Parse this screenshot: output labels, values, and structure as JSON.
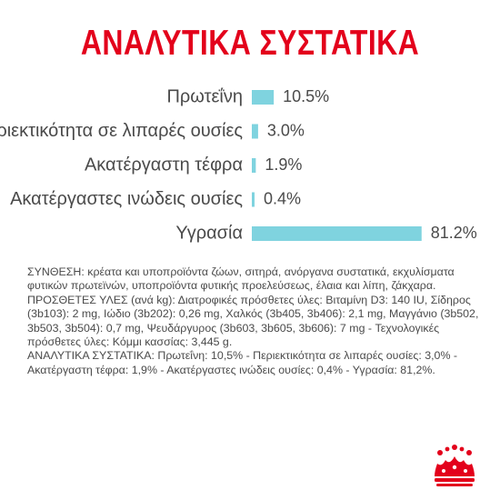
{
  "title": "ΑΝΑΛΥΤΙΚΑ ΣΥΣΤΑΤΙΚΑ",
  "chart_data": {
    "type": "bar",
    "orientation": "horizontal",
    "categories": [
      "Πρωτεΐνη",
      "Περιεκτικότητα σε λιπαρές ουσίες",
      "Ακατέργαστη τέφρα",
      "Ακατέργαστες ινώδεις ουσίες",
      "Υγρασία"
    ],
    "values": [
      10.5,
      3.0,
      1.9,
      0.4,
      81.2
    ],
    "value_labels": [
      "10.5%",
      "3.0%",
      "1.9%",
      "0.4%",
      "81.2%"
    ],
    "color": "#7fd3df",
    "title": "ΑΝΑΛΥΤΙΚΑ ΣΥΣΤΑΤΙΚΑ",
    "xlabel": "",
    "ylabel": "",
    "xlim": [
      0,
      100
    ],
    "grid": false,
    "legend": "none"
  },
  "composition": {
    "synthesis": "ΣΥΝΘΕΣΗ: κρέατα και υποπροϊόντα ζώων, σιτηρά, ανόργανα συστατικά, εκχυλίσματα φυτικών πρωτεϊνών, υποπροϊόντα φυτικής προελεύσεως, έλαια και λίπη, ζάκχαρα.",
    "additives": "ΠΡΟΣΘΕΤΕΣ ΥΛΕΣ (ανά kg): Διατροφικές πρόσθετες ύλες: Βιταμίνη D3: 140 IU, Σίδηρος (3b103): 2 mg, Ιώδιο (3b202): 0,26 mg, Χαλκός (3b405, 3b406): 2,1 mg, Μαγγάνιο (3b502, 3b503, 3b504): 0,7 mg, Ψευδάργυρος (3b603, 3b605, 3b606): 7 mg - Τεχνολογικές πρόσθετες ύλες: Κόμμι κασσίας: 3,445 g.",
    "analytical": "ΑΝΑΛΥΤΙΚΑ ΣΥΣΤΑΤΙΚΑ: Πρωτεΐνη: 10,5% - Περιεκτικότητα σε λιπαρές ουσίες: 3,0% - Ακατέργαστη τέφρα: 1,9% - Ακατέργαστες ινώδεις ουσίες: 0,4% - Υγρασία: 81,2%."
  },
  "brand_color": "#e3001b",
  "logo_icon": "crown-icon"
}
